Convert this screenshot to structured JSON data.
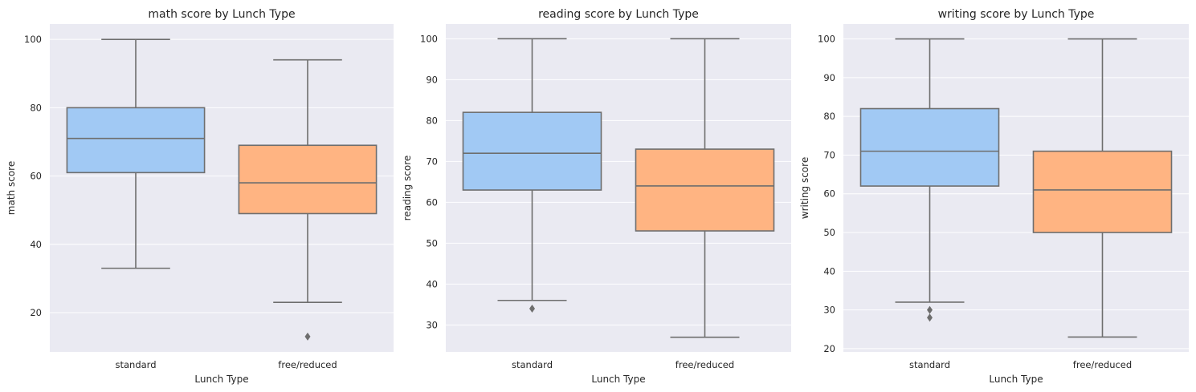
{
  "chart_data": [
    {
      "type": "box",
      "title": "math score by Lunch Type",
      "xlabel": "Lunch Type",
      "ylabel": "math score",
      "ylim": [
        8.5,
        104.5
      ],
      "yticks": [
        20,
        40,
        60,
        80,
        100
      ],
      "grid": true,
      "categories": [
        "standard",
        "free/reduced"
      ],
      "boxes": [
        {
          "category": "standard",
          "whisker_low": 33,
          "q1": 61,
          "median": 71,
          "q3": 80,
          "whisker_high": 100,
          "outliers": []
        },
        {
          "category": "free/reduced",
          "whisker_low": 23,
          "q1": 49,
          "median": 58,
          "q3": 69,
          "whisker_high": 94,
          "outliers": [
            13
          ]
        }
      ]
    },
    {
      "type": "box",
      "title": "reading score by Lunch Type",
      "xlabel": "Lunch Type",
      "ylabel": "reading score",
      "ylim": [
        23.4,
        103.6
      ],
      "yticks": [
        30,
        40,
        50,
        60,
        70,
        80,
        90,
        100
      ],
      "grid": true,
      "categories": [
        "standard",
        "free/reduced"
      ],
      "boxes": [
        {
          "category": "standard",
          "whisker_low": 36,
          "q1": 63,
          "median": 72,
          "q3": 82,
          "whisker_high": 100,
          "outliers": [
            34
          ]
        },
        {
          "category": "free/reduced",
          "whisker_low": 27,
          "q1": 53,
          "median": 64,
          "q3": 73,
          "whisker_high": 100,
          "outliers": []
        }
      ]
    },
    {
      "type": "box",
      "title": "writing score by Lunch Type",
      "xlabel": "Lunch Type",
      "ylabel": "writing score",
      "ylim": [
        19.15,
        103.85
      ],
      "yticks": [
        20,
        30,
        40,
        50,
        60,
        70,
        80,
        90,
        100
      ],
      "grid": true,
      "categories": [
        "standard",
        "free/reduced"
      ],
      "boxes": [
        {
          "category": "standard",
          "whisker_low": 32,
          "q1": 62,
          "median": 71,
          "q3": 82,
          "whisker_high": 100,
          "outliers": [
            30,
            28
          ]
        },
        {
          "category": "free/reduced",
          "whisker_low": 23,
          "q1": 50,
          "median": 61,
          "q3": 71,
          "whisker_high": 100,
          "outliers": []
        }
      ]
    }
  ],
  "colors": {
    "background": "#eaeaf2",
    "grid": "#ffffff",
    "line": "#6e6e6e",
    "standard": "#a1c9f4",
    "free/reduced": "#ffb482"
  }
}
